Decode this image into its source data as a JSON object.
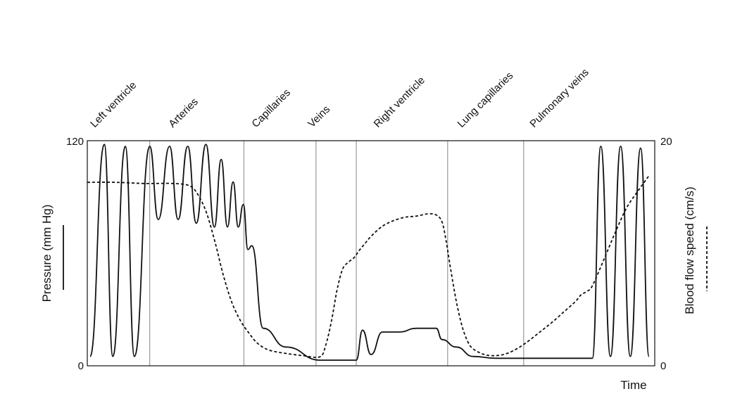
{
  "chart_data": {
    "type": "line",
    "title": "",
    "xlabel": "Time",
    "ylabel_left": "Pressure (mm Hg)",
    "ylabel_right": "Blood flow speed (cm/s)",
    "y_left_range": [
      0,
      120
    ],
    "y_right_range": [
      0,
      20
    ],
    "y_left_ticks": [
      "0",
      "120"
    ],
    "y_right_ticks": [
      "0",
      "20"
    ],
    "legend": {
      "pressure_style": "solid",
      "speed_style": "dashed",
      "placement": "beside-axis-labels"
    },
    "grid": false,
    "x_range": [
      0,
      100
    ],
    "regions": [
      {
        "label": "Left ventricle",
        "start": 0,
        "end": 11.0
      },
      {
        "label": "Arteries",
        "start": 11.0,
        "end": 27.6
      },
      {
        "label": "Capillaries",
        "start": 27.6,
        "end": 40.3
      },
      {
        "label": "Veins",
        "start": 40.3,
        "end": 47.4
      },
      {
        "label": "Right ventricle",
        "start": 47.4,
        "end": 63.5
      },
      {
        "label": "Lung capillaries",
        "start": 63.5,
        "end": 76.9
      },
      {
        "label": "Pulmonary veins",
        "start": 76.9,
        "end": 89.0
      }
    ],
    "series": [
      {
        "name": "",
        "axis": "left",
        "style": "solid",
        "description_points": [
          {
            "x": 0.5,
            "y": 5
          },
          {
            "x": 3.0,
            "y": 118
          },
          {
            "x": 4.5,
            "y": 5
          },
          {
            "x": 6.7,
            "y": 117
          },
          {
            "x": 8.3,
            "y": 5
          },
          {
            "x": 11.0,
            "y": 117
          },
          {
            "x": 12.5,
            "y": 78
          },
          {
            "x": 14.5,
            "y": 117
          },
          {
            "x": 16.0,
            "y": 78
          },
          {
            "x": 17.7,
            "y": 117
          },
          {
            "x": 19.2,
            "y": 76
          },
          {
            "x": 20.9,
            "y": 118
          },
          {
            "x": 22.4,
            "y": 74
          },
          {
            "x": 23.6,
            "y": 110
          },
          {
            "x": 24.7,
            "y": 74
          },
          {
            "x": 25.7,
            "y": 98
          },
          {
            "x": 26.6,
            "y": 74
          },
          {
            "x": 27.5,
            "y": 86
          },
          {
            "x": 28.3,
            "y": 62
          },
          {
            "x": 29.0,
            "y": 64
          },
          {
            "x": 31.0,
            "y": 20
          },
          {
            "x": 35.0,
            "y": 10
          },
          {
            "x": 41.0,
            "y": 3
          },
          {
            "x": 47.4,
            "y": 3
          },
          {
            "x": 48.5,
            "y": 19
          },
          {
            "x": 50.0,
            "y": 6
          },
          {
            "x": 52.0,
            "y": 18
          },
          {
            "x": 55.0,
            "y": 18
          },
          {
            "x": 58.0,
            "y": 20
          },
          {
            "x": 61.5,
            "y": 20
          },
          {
            "x": 62.5,
            "y": 14
          },
          {
            "x": 65.0,
            "y": 10
          },
          {
            "x": 68.0,
            "y": 5
          },
          {
            "x": 72.0,
            "y": 4
          },
          {
            "x": 76.0,
            "y": 4
          },
          {
            "x": 89.0,
            "y": 4
          },
          {
            "x": 90.5,
            "y": 117
          },
          {
            "x": 92.2,
            "y": 5
          },
          {
            "x": 94.0,
            "y": 117
          },
          {
            "x": 95.7,
            "y": 5
          },
          {
            "x": 97.5,
            "y": 116
          },
          {
            "x": 99.0,
            "y": 5
          }
        ]
      },
      {
        "name": "",
        "axis": "right",
        "style": "dashed",
        "x": [
          0,
          5,
          10,
          15,
          18,
          19.5,
          21,
          22.5,
          24,
          25.5,
          27,
          28.5,
          30,
          32,
          35,
          38,
          41,
          42,
          43,
          44,
          45,
          46,
          47,
          48,
          49,
          50,
          52,
          54,
          56,
          58,
          60,
          61.5,
          62.5,
          63.2,
          64,
          65,
          66,
          67,
          68,
          70,
          72,
          74,
          76,
          78,
          80,
          82,
          84,
          86,
          87,
          88,
          89,
          91,
          93,
          95,
          97,
          99
        ],
        "y": [
          16.3,
          16.3,
          16.2,
          16.2,
          16.0,
          15.2,
          13.6,
          11.0,
          8.0,
          5.6,
          4.0,
          2.9,
          2.0,
          1.4,
          1.1,
          0.9,
          0.8,
          1.8,
          3.9,
          6.7,
          8.6,
          9.2,
          9.6,
          10.3,
          10.9,
          11.5,
          12.4,
          12.9,
          13.2,
          13.3,
          13.5,
          13.4,
          12.8,
          11.2,
          8.7,
          5.8,
          3.6,
          2.2,
          1.5,
          1.0,
          0.9,
          1.1,
          1.6,
          2.3,
          3.1,
          3.9,
          4.8,
          5.7,
          6.3,
          6.6,
          7.1,
          9.4,
          11.8,
          14.0,
          15.5,
          16.9
        ]
      }
    ]
  }
}
